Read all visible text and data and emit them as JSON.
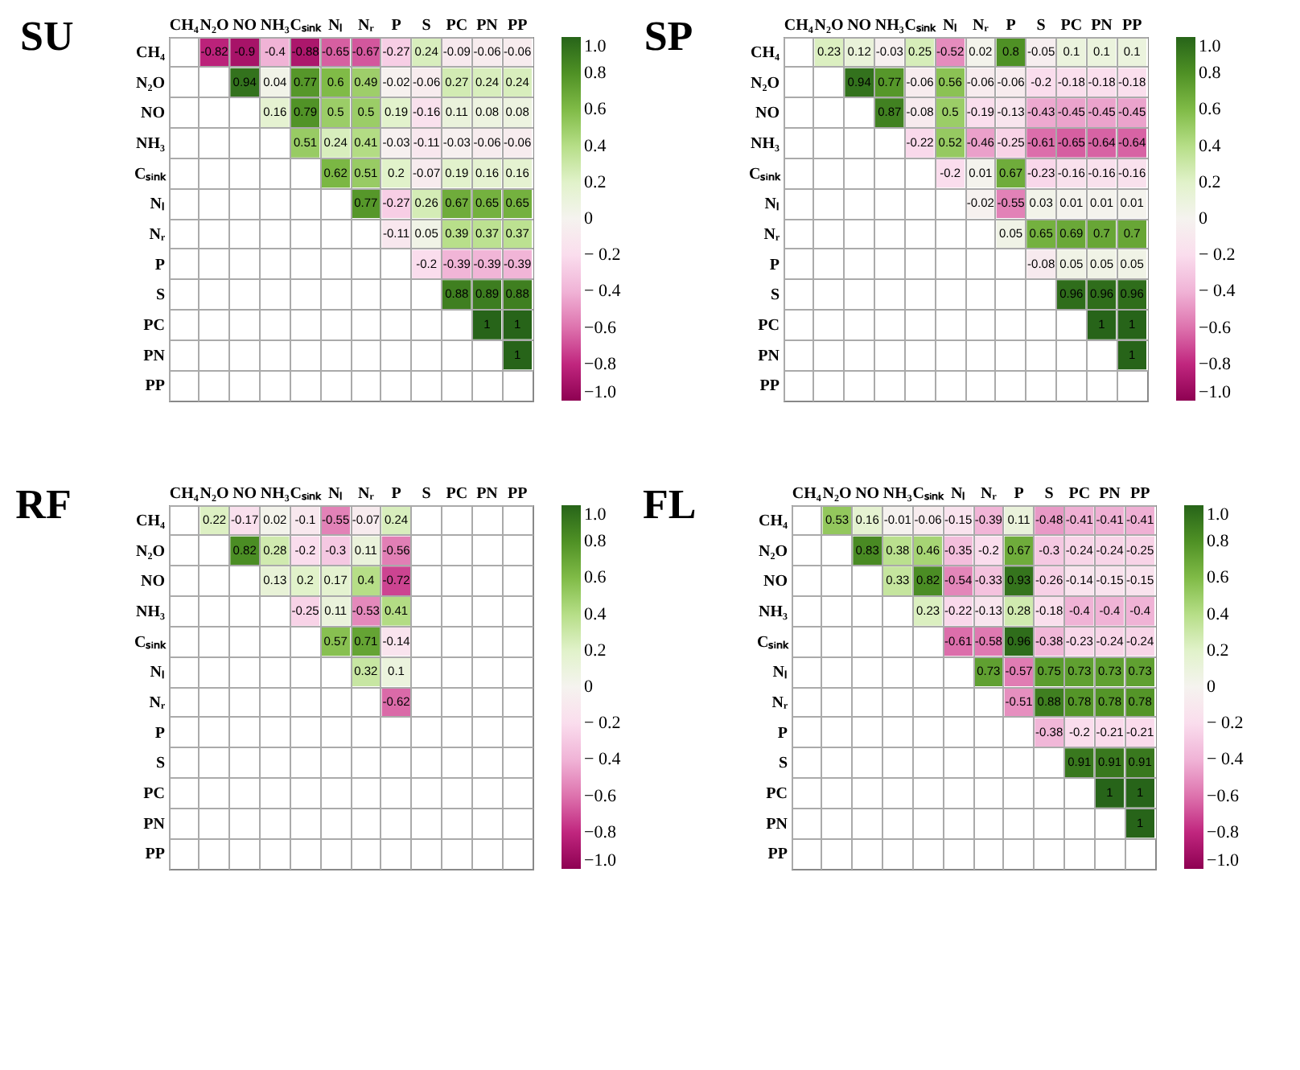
{
  "chart_data": [
    {
      "type": "heatmap",
      "title": "SU",
      "y_categories": [
        "CH₄",
        "N₂O",
        "NO",
        "NH₃",
        "Cₛᵢₙₖ",
        "Nₗ",
        "Nᵣ",
        "P",
        "S",
        "PC",
        "PN",
        "PP"
      ],
      "categories": [
        "CH₄",
        "N₂O",
        "NO",
        "NH₃",
        "Cₛᵢₙₖ",
        "Nₗ",
        "Nᵣ",
        "P",
        "S",
        "PC",
        "PN",
        "PP"
      ],
      "cells": [
        [
          null,
          -0.82,
          -0.9,
          -0.4,
          -0.88,
          -0.65,
          -0.67,
          -0.27,
          0.24,
          -0.09,
          -0.06,
          -0.06
        ],
        [
          null,
          null,
          0.94,
          0.04,
          0.77,
          0.6,
          0.49,
          -0.02,
          -0.06,
          0.27,
          0.24,
          0.24
        ],
        [
          null,
          null,
          null,
          0.16,
          0.79,
          0.5,
          0.5,
          0.19,
          -0.16,
          0.11,
          0.08,
          0.08
        ],
        [
          null,
          null,
          null,
          null,
          0.51,
          0.24,
          0.41,
          -0.03,
          -0.11,
          -0.03,
          -0.06,
          -0.06
        ],
        [
          null,
          null,
          null,
          null,
          null,
          0.62,
          0.51,
          0.2,
          -0.07,
          0.19,
          0.16,
          0.16
        ],
        [
          null,
          null,
          null,
          null,
          null,
          null,
          0.77,
          -0.27,
          0.26,
          0.67,
          0.65,
          0.65
        ],
        [
          null,
          null,
          null,
          null,
          null,
          null,
          null,
          -0.11,
          0.05,
          0.39,
          0.37,
          0.37
        ],
        [
          null,
          null,
          null,
          null,
          null,
          null,
          null,
          null,
          -0.2,
          -0.39,
          -0.39,
          -0.39
        ],
        [
          null,
          null,
          null,
          null,
          null,
          null,
          null,
          null,
          null,
          0.88,
          0.89,
          0.88
        ],
        [
          null,
          null,
          null,
          null,
          null,
          null,
          null,
          null,
          null,
          null,
          1,
          1
        ],
        [
          null,
          null,
          null,
          null,
          null,
          null,
          null,
          null,
          null,
          null,
          null,
          1
        ],
        [
          null,
          null,
          null,
          null,
          null,
          null,
          null,
          null,
          null,
          null,
          null,
          null
        ]
      ],
      "data_labels": true,
      "clim": [
        -1,
        1
      ],
      "cticks": [
        {
          "value": 1,
          "label": "1.0"
        },
        0.8,
        0.6,
        0.4,
        0.2,
        0,
        {
          "value": -0.2,
          "label": "− 0.2"
        },
        {
          "value": -0.4,
          "label": "− 0.4"
        },
        {
          "value": -0.6,
          "label": "−0.6"
        },
        {
          "value": -0.8,
          "label": "−0.8"
        },
        {
          "value": -1,
          "label": "−1.0"
        }
      ],
      "grid": true
    },
    {
      "type": "heatmap",
      "title": "SP",
      "y_categories": [
        "CH₄",
        "N₂O",
        "NO",
        "NH₃",
        "Cₛᵢₙₖ",
        "Nₗ",
        "Nᵣ",
        "P",
        "S",
        "PC",
        "PN",
        "PP"
      ],
      "categories": [
        "CH₄",
        "N₂O",
        "NO",
        "NH₃",
        "Cₛᵢₙₖ",
        "Nₗ",
        "Nᵣ",
        "P",
        "S",
        "PC",
        "PN",
        "PP"
      ],
      "cells": [
        [
          null,
          0.23,
          0.12,
          -0.03,
          0.25,
          -0.52,
          0.02,
          0.8,
          -0.05,
          0.1,
          0.1,
          0.1
        ],
        [
          null,
          null,
          0.94,
          0.77,
          -0.06,
          0.56,
          -0.06,
          -0.06,
          -0.2,
          -0.18,
          -0.18,
          -0.18
        ],
        [
          null,
          null,
          null,
          0.87,
          -0.08,
          0.5,
          -0.19,
          -0.13,
          -0.43,
          -0.45,
          -0.45,
          -0.45
        ],
        [
          null,
          null,
          null,
          null,
          -0.22,
          0.52,
          -0.46,
          -0.25,
          -0.61,
          -0.65,
          -0.64,
          -0.64
        ],
        [
          null,
          null,
          null,
          null,
          null,
          -0.2,
          0.01,
          0.67,
          -0.23,
          -0.16,
          -0.16,
          -0.16
        ],
        [
          null,
          null,
          null,
          null,
          null,
          null,
          -0.02,
          -0.55,
          0.03,
          0.01,
          0.01,
          0.01
        ],
        [
          null,
          null,
          null,
          null,
          null,
          null,
          null,
          0.05,
          0.65,
          0.69,
          0.7,
          0.7
        ],
        [
          null,
          null,
          null,
          null,
          null,
          null,
          null,
          null,
          -0.08,
          0.05,
          0.05,
          0.05
        ],
        [
          null,
          null,
          null,
          null,
          null,
          null,
          null,
          null,
          null,
          0.96,
          0.96,
          0.96
        ],
        [
          null,
          null,
          null,
          null,
          null,
          null,
          null,
          null,
          null,
          null,
          1,
          1
        ],
        [
          null,
          null,
          null,
          null,
          null,
          null,
          null,
          null,
          null,
          null,
          null,
          1
        ],
        [
          null,
          null,
          null,
          null,
          null,
          null,
          null,
          null,
          null,
          null,
          null,
          null
        ]
      ],
      "data_labels": true,
      "clim": [
        -1,
        1
      ],
      "cticks": [
        {
          "value": 1,
          "label": "1.0"
        },
        0.8,
        0.6,
        0.4,
        0.2,
        0,
        {
          "value": -0.2,
          "label": "− 0.2"
        },
        {
          "value": -0.4,
          "label": "− 0.4"
        },
        {
          "value": -0.6,
          "label": "−0.6"
        },
        {
          "value": -0.8,
          "label": "−0.8"
        },
        {
          "value": -1,
          "label": "−1.0"
        }
      ],
      "grid": true
    },
    {
      "type": "heatmap",
      "title": "RF",
      "y_categories": [
        "CH₄",
        "N₂O",
        "NO",
        "NH₃",
        "Cₛᵢₙₖ",
        "Nₗ",
        "Nᵣ",
        "P",
        "S",
        "PC",
        "PN",
        "PP"
      ],
      "categories": [
        "CH₄",
        "N₂O",
        "NO",
        "NH₃",
        "Cₛᵢₙₖ",
        "Nₗ",
        "Nᵣ",
        "P",
        "S",
        "PC",
        "PN",
        "PP"
      ],
      "cells": [
        [
          null,
          0.22,
          -0.17,
          0.02,
          -0.1,
          -0.55,
          -0.07,
          0.24,
          null,
          null,
          null,
          null
        ],
        [
          null,
          null,
          0.82,
          0.28,
          -0.2,
          -0.3,
          0.11,
          -0.56,
          null,
          null,
          null,
          null
        ],
        [
          null,
          null,
          null,
          0.13,
          0.2,
          0.17,
          0.4,
          -0.72,
          null,
          null,
          null,
          null
        ],
        [
          null,
          null,
          null,
          null,
          -0.25,
          0.11,
          -0.53,
          0.41,
          null,
          null,
          null,
          null
        ],
        [
          null,
          null,
          null,
          null,
          null,
          0.57,
          0.71,
          -0.14,
          null,
          null,
          null,
          null
        ],
        [
          null,
          null,
          null,
          null,
          null,
          null,
          0.32,
          0.1,
          null,
          null,
          null,
          null
        ],
        [
          null,
          null,
          null,
          null,
          null,
          null,
          null,
          -0.62,
          null,
          null,
          null,
          null
        ],
        [
          null,
          null,
          null,
          null,
          null,
          null,
          null,
          null,
          null,
          null,
          null,
          null
        ],
        [
          null,
          null,
          null,
          null,
          null,
          null,
          null,
          null,
          null,
          null,
          null,
          null
        ],
        [
          null,
          null,
          null,
          null,
          null,
          null,
          null,
          null,
          null,
          null,
          null,
          null
        ],
        [
          null,
          null,
          null,
          null,
          null,
          null,
          null,
          null,
          null,
          null,
          null,
          null
        ],
        [
          null,
          null,
          null,
          null,
          null,
          null,
          null,
          null,
          null,
          null,
          null,
          null
        ]
      ],
      "data_labels": true,
      "clim": [
        -1,
        1
      ],
      "cticks": [
        {
          "value": 1,
          "label": "1.0"
        },
        0.8,
        0.6,
        0.4,
        0.2,
        0,
        {
          "value": -0.2,
          "label": "− 0.2"
        },
        {
          "value": -0.4,
          "label": "− 0.4"
        },
        {
          "value": -0.6,
          "label": "−0.6"
        },
        {
          "value": -0.8,
          "label": "−0.8"
        },
        {
          "value": -1,
          "label": "−1.0"
        }
      ],
      "grid": true
    },
    {
      "type": "heatmap",
      "title": "FL",
      "y_categories": [
        "CH₄",
        "N₂O",
        "NO",
        "NH₃",
        "Cₛᵢₙₖ",
        "Nₗ",
        "Nᵣ",
        "P",
        "S",
        "PC",
        "PN",
        "PP"
      ],
      "categories": [
        "CH₄",
        "N₂O",
        "NO",
        "NH₃",
        "Cₛᵢₙₖ",
        "Nₗ",
        "Nᵣ",
        "P",
        "S",
        "PC",
        "PN",
        "PP"
      ],
      "cells": [
        [
          null,
          0.53,
          0.16,
          -0.01,
          -0.06,
          -0.15,
          -0.39,
          0.11,
          -0.48,
          -0.41,
          -0.41,
          -0.41
        ],
        [
          null,
          null,
          0.83,
          0.38,
          0.46,
          -0.35,
          -0.2,
          0.67,
          -0.3,
          -0.24,
          -0.24,
          -0.25
        ],
        [
          null,
          null,
          null,
          0.33,
          0.82,
          -0.54,
          -0.33,
          0.93,
          -0.26,
          -0.14,
          -0.15,
          -0.15
        ],
        [
          null,
          null,
          null,
          null,
          0.23,
          -0.22,
          -0.13,
          0.28,
          -0.18,
          -0.4,
          -0.4,
          -0.4
        ],
        [
          null,
          null,
          null,
          null,
          null,
          -0.61,
          -0.58,
          0.96,
          -0.38,
          -0.23,
          -0.24,
          -0.24
        ],
        [
          null,
          null,
          null,
          null,
          null,
          null,
          0.73,
          -0.57,
          0.75,
          0.73,
          0.73,
          0.73
        ],
        [
          null,
          null,
          null,
          null,
          null,
          null,
          null,
          -0.51,
          0.88,
          0.78,
          0.78,
          0.78
        ],
        [
          null,
          null,
          null,
          null,
          null,
          null,
          null,
          null,
          -0.38,
          -0.2,
          -0.21,
          -0.21
        ],
        [
          null,
          null,
          null,
          null,
          null,
          null,
          null,
          null,
          null,
          0.91,
          0.91,
          0.91
        ],
        [
          null,
          null,
          null,
          null,
          null,
          null,
          null,
          null,
          null,
          null,
          1,
          1
        ],
        [
          null,
          null,
          null,
          null,
          null,
          null,
          null,
          null,
          null,
          null,
          null,
          1
        ],
        [
          null,
          null,
          null,
          null,
          null,
          null,
          null,
          null,
          null,
          null,
          null,
          null
        ]
      ],
      "data_labels": true,
      "clim": [
        -1,
        1
      ],
      "cticks": [
        {
          "value": 1,
          "label": "1.0"
        },
        0.8,
        0.6,
        0.4,
        0.2,
        0,
        {
          "value": -0.2,
          "label": "− 0.2"
        },
        {
          "value": -0.4,
          "label": "− 0.4"
        },
        {
          "value": -0.6,
          "label": "−0.6"
        },
        {
          "value": -0.8,
          "label": "−0.8"
        },
        {
          "value": -1,
          "label": "−1.0"
        }
      ],
      "grid": true
    }
  ]
}
